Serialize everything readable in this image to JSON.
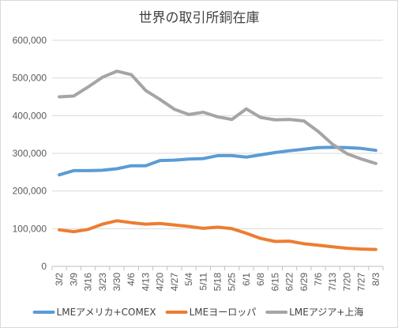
{
  "chart_data": {
    "type": "line",
    "title": "世界の取引所銅在庫",
    "xlabel": "",
    "ylabel": "",
    "ylim": [
      0,
      600000
    ],
    "yticks": [
      0,
      100000,
      200000,
      300000,
      400000,
      500000,
      600000
    ],
    "ytick_labels": [
      "0",
      "100,000",
      "200,000",
      "300,000",
      "400,000",
      "500,000",
      "600,000"
    ],
    "grid": true,
    "legend_position": "bottom",
    "categories": [
      "3/2",
      "3/9",
      "3/16",
      "3/23",
      "3/30",
      "4/6",
      "4/13",
      "4/20",
      "4/27",
      "5/4",
      "5/11",
      "5/18",
      "5/25",
      "6/1",
      "6/8",
      "6/15",
      "6/22",
      "6/29",
      "7/6",
      "7/13",
      "7/20",
      "7/27",
      "8/3"
    ],
    "series": [
      {
        "name": "LMEアメリカ+COMEX",
        "color": "#5b9bd5",
        "values": [
          243000,
          254000,
          254000,
          255000,
          259000,
          267000,
          267000,
          281000,
          282000,
          285000,
          286000,
          294000,
          294000,
          290000,
          296000,
          302000,
          307000,
          311000,
          315000,
          316000,
          315000,
          313000,
          308000
        ]
      },
      {
        "name": "LMEヨーロッパ",
        "color": "#ed7d31",
        "values": [
          97000,
          92000,
          98000,
          112000,
          121000,
          116000,
          112000,
          114000,
          110000,
          106000,
          101000,
          104000,
          100000,
          88000,
          74000,
          66000,
          67000,
          60000,
          56000,
          52000,
          48000,
          46000,
          45000
        ]
      },
      {
        "name": "LMEアジア+上海",
        "color": "#a5a5a5",
        "values": [
          450000,
          452000,
          476000,
          502000,
          518000,
          509000,
          467000,
          443000,
          417000,
          403000,
          409000,
          397000,
          390000,
          418000,
          395000,
          389000,
          390000,
          386000,
          358000,
          324000,
          299000,
          285000,
          273000
        ]
      }
    ]
  }
}
